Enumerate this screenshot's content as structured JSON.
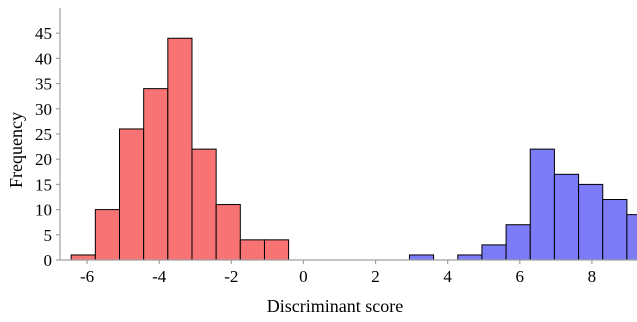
{
  "chart_data": {
    "type": "bar",
    "subtype": "histogram",
    "xlabel": "Discriminant score",
    "ylabel": "Frequency",
    "x_ticks": [
      -6,
      -4,
      -2,
      0,
      2,
      4,
      6,
      8
    ],
    "y_ticks": [
      0,
      5,
      10,
      15,
      20,
      25,
      30,
      35,
      40,
      45
    ],
    "xlim": [
      -6.75,
      9.25
    ],
    "ylim": [
      0,
      50
    ],
    "grid": false,
    "bin_width": 0.67,
    "series": [
      {
        "color": "#f87474",
        "bins": [
          {
            "x0": -6.44,
            "x1": -5.77,
            "count": 1
          },
          {
            "x0": -5.77,
            "x1": -5.1,
            "count": 10
          },
          {
            "x0": -5.1,
            "x1": -4.43,
            "count": 26
          },
          {
            "x0": -4.43,
            "x1": -3.76,
            "count": 34
          },
          {
            "x0": -3.76,
            "x1": -3.09,
            "count": 44
          },
          {
            "x0": -3.09,
            "x1": -2.42,
            "count": 22
          },
          {
            "x0": -2.42,
            "x1": -1.75,
            "count": 11
          },
          {
            "x0": -1.75,
            "x1": -1.08,
            "count": 4
          },
          {
            "x0": -1.08,
            "x1": -0.41,
            "count": 4
          }
        ]
      },
      {
        "color": "#7c7cf8",
        "bins": [
          {
            "x0": 2.94,
            "x1": 3.61,
            "count": 1
          },
          {
            "x0": 3.61,
            "x1": 4.28,
            "count": 0
          },
          {
            "x0": 4.28,
            "x1": 4.95,
            "count": 1
          },
          {
            "x0": 4.95,
            "x1": 5.62,
            "count": 3
          },
          {
            "x0": 5.62,
            "x1": 6.29,
            "count": 7
          },
          {
            "x0": 6.29,
            "x1": 6.96,
            "count": 22
          },
          {
            "x0": 6.96,
            "x1": 7.63,
            "count": 17
          },
          {
            "x0": 7.63,
            "x1": 8.3,
            "count": 15
          },
          {
            "x0": 8.3,
            "x1": 8.97,
            "count": 12
          },
          {
            "x0": 8.97,
            "x1": 9.64,
            "count": 9
          }
        ]
      }
    ]
  }
}
